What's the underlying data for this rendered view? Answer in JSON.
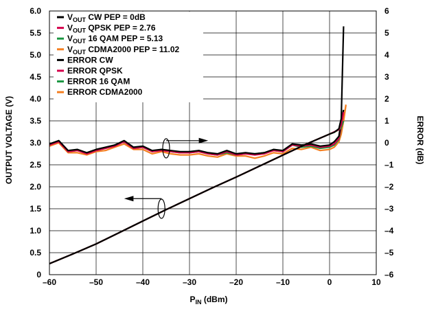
{
  "chart_data": {
    "type": "line",
    "xlabel": {
      "main": "P",
      "sub": "IN",
      "rest": " (dBm)"
    },
    "ylabel_left": "OUTPUT VOLTAGE (V)",
    "ylabel_right": "ERROR (dB)",
    "xlim": [
      -60,
      10
    ],
    "ylim_left": [
      0,
      6.0
    ],
    "ylim_right": [
      -6,
      6
    ],
    "x_ticks": [
      -60,
      -50,
      -40,
      -30,
      -20,
      -10,
      0,
      10
    ],
    "x_tick_labels": [
      "–60",
      "–50",
      "–40",
      "–30",
      "–20",
      "–10",
      "0",
      "10"
    ],
    "y_left_ticks": [
      0,
      0.5,
      1.0,
      1.5,
      2.0,
      2.5,
      3.0,
      3.5,
      4.0,
      4.5,
      5.0,
      5.5,
      6.0
    ],
    "y_left_tick_labels": [
      "0",
      "0.5",
      "1.0",
      "1.5",
      "2.0",
      "2.5",
      "3.0",
      "3.5",
      "4.0",
      "4.5",
      "5.0",
      "5.5",
      "6.0"
    ],
    "y_right_ticks": [
      -6,
      -5,
      -4,
      -3,
      -2,
      -1,
      0,
      1,
      2,
      3,
      4,
      5,
      6
    ],
    "y_right_tick_labels": [
      "–6",
      "–5",
      "–4",
      "–3",
      "–2",
      "–1",
      "0",
      "1",
      "2",
      "3",
      "4",
      "5",
      "6"
    ],
    "grid": true,
    "legend_position": "top-left",
    "legend": [
      {
        "main": "V",
        "sub": "OUT",
        "rest": " CW PEP = 0dB",
        "color": "#000000"
      },
      {
        "main": "V",
        "sub": "OUT",
        "rest": "  QPSK PEP = 2.76",
        "color": "#d4004b"
      },
      {
        "main": "V",
        "sub": "OUT",
        "rest": " 16 QAM PEP = 5.13",
        "color": "#1a9641"
      },
      {
        "main": "V",
        "sub": "OUT",
        "rest": " CDMA2000 PEP = 11.02",
        "color": "#f57f20"
      },
      {
        "main": "ERROR CW",
        "sub": "",
        "rest": "",
        "color": "#000000"
      },
      {
        "main": "ERROR QPSK",
        "sub": "",
        "rest": "",
        "color": "#d4004b"
      },
      {
        "main": "ERROR 16 QAM",
        "sub": "",
        "rest": "",
        "color": "#1a9641"
      },
      {
        "main": "ERROR CDMA2000",
        "sub": "",
        "rest": "",
        "color": "#f57f20"
      }
    ],
    "series": [
      {
        "axis": "left",
        "color": "#000000",
        "x": [
          -60,
          -55,
          -50,
          -45,
          -40,
          -35,
          -30,
          -25,
          -20,
          -15,
          -10,
          -5,
          0,
          1,
          2,
          2.5,
          3
        ],
        "y": [
          0.25,
          0.47,
          0.7,
          0.96,
          1.22,
          1.48,
          1.73,
          1.98,
          2.22,
          2.47,
          2.72,
          2.97,
          3.2,
          3.24,
          3.32,
          3.55,
          5.65
        ]
      },
      {
        "axis": "left",
        "color": "#d4004b",
        "x": [
          -60,
          -55,
          -50,
          -45,
          -40,
          -35,
          -30,
          -25,
          -20,
          -15,
          -10,
          -5,
          0,
          1,
          2,
          2.5,
          3
        ],
        "y": [
          0.25,
          0.47,
          0.7,
          0.96,
          1.22,
          1.48,
          1.73,
          1.98,
          2.22,
          2.47,
          2.72,
          2.97,
          3.2,
          3.25,
          3.3,
          3.4,
          3.7
        ]
      },
      {
        "axis": "left",
        "color": "#1a9641",
        "x": [
          -60,
          -55,
          -50,
          -45,
          -40,
          -35,
          -30,
          -25,
          -20,
          -15,
          -10,
          -5,
          0,
          1,
          2,
          2.5,
          3
        ],
        "y": [
          0.25,
          0.47,
          0.7,
          0.96,
          1.22,
          1.48,
          1.73,
          1.98,
          2.22,
          2.47,
          2.72,
          2.97,
          3.2,
          3.24,
          3.3,
          3.35,
          3.5
        ]
      },
      {
        "axis": "left",
        "color": "#f57f20",
        "x": [
          -60,
          -55,
          -50,
          -45,
          -40,
          -35,
          -30,
          -25,
          -20,
          -15,
          -10,
          -5,
          0,
          1,
          2,
          2.5,
          3,
          3.5
        ],
        "y": [
          0.25,
          0.47,
          0.7,
          0.96,
          1.22,
          1.48,
          1.73,
          1.98,
          2.22,
          2.47,
          2.72,
          2.97,
          3.2,
          3.24,
          3.3,
          3.35,
          3.5,
          3.87
        ]
      },
      {
        "axis": "right",
        "color": "#000000",
        "x": [
          -60,
          -58,
          -56,
          -54,
          -52,
          -50,
          -48,
          -46,
          -44,
          -42,
          -40,
          -38,
          -36,
          -34,
          -32,
          -30,
          -28,
          -26,
          -24,
          -22,
          -20,
          -18,
          -16,
          -14,
          -12,
          -10,
          -8,
          -6,
          -4,
          -2,
          0,
          1,
          2,
          2.5,
          3
        ],
        "y": [
          -0.05,
          0.1,
          -0.35,
          -0.3,
          -0.45,
          -0.3,
          -0.2,
          -0.1,
          0.1,
          -0.2,
          -0.15,
          -0.35,
          -0.3,
          -0.35,
          -0.4,
          -0.4,
          -0.35,
          -0.45,
          -0.5,
          -0.35,
          -0.5,
          -0.45,
          -0.5,
          -0.45,
          -0.3,
          -0.35,
          -0.05,
          -0.1,
          -0.05,
          -0.15,
          -0.1,
          0.05,
          0.3,
          1.0,
          1.5
        ]
      },
      {
        "axis": "right",
        "color": "#d4004b",
        "x": [
          -60,
          -58,
          -56,
          -54,
          -52,
          -50,
          -48,
          -46,
          -44,
          -42,
          -40,
          -38,
          -36,
          -34,
          -32,
          -30,
          -28,
          -26,
          -24,
          -22,
          -20,
          -18,
          -16,
          -14,
          -12,
          -10,
          -8,
          -6,
          -4,
          -2,
          0,
          1,
          2,
          2.5,
          3
        ],
        "y": [
          -0.1,
          0.05,
          -0.4,
          -0.35,
          -0.5,
          -0.35,
          -0.25,
          -0.15,
          0.05,
          -0.25,
          -0.2,
          -0.4,
          -0.35,
          -0.4,
          -0.45,
          -0.45,
          -0.4,
          -0.5,
          -0.55,
          -0.4,
          -0.55,
          -0.5,
          -0.55,
          -0.5,
          -0.35,
          -0.4,
          -0.1,
          -0.15,
          -0.1,
          -0.2,
          -0.15,
          -0.05,
          0.2,
          0.8,
          1.4
        ]
      },
      {
        "axis": "right",
        "color": "#1a9641",
        "x": [
          -60,
          -58,
          -56,
          -54,
          -52,
          -50,
          -48,
          -46,
          -44,
          -42,
          -40,
          -38,
          -36,
          -34,
          -32,
          -30,
          -28,
          -26,
          -24,
          -22,
          -20,
          -18,
          -16,
          -14,
          -12,
          -10,
          -8,
          -6,
          -4,
          -2,
          0,
          1,
          2,
          2.5,
          3
        ],
        "y": [
          -0.1,
          0.1,
          -0.4,
          -0.35,
          -0.45,
          -0.35,
          -0.25,
          -0.1,
          0.05,
          -0.25,
          -0.2,
          -0.4,
          -0.3,
          -0.4,
          -0.45,
          -0.45,
          -0.4,
          -0.5,
          -0.55,
          -0.45,
          -0.55,
          -0.5,
          -0.5,
          -0.45,
          -0.35,
          -0.4,
          -0.1,
          -0.2,
          -0.15,
          -0.25,
          -0.2,
          -0.1,
          0.15,
          0.7,
          1.3
        ]
      },
      {
        "axis": "right",
        "color": "#f57f20",
        "x": [
          -60,
          -58,
          -56,
          -54,
          -52,
          -50,
          -48,
          -46,
          -44,
          -42,
          -40,
          -38,
          -36,
          -34,
          -32,
          -30,
          -28,
          -26,
          -24,
          -22,
          -20,
          -18,
          -16,
          -14,
          -12,
          -10,
          -8,
          -6,
          -4,
          -2,
          0,
          1,
          2,
          2.5,
          3,
          3.5
        ],
        "y": [
          -0.15,
          0.0,
          -0.45,
          -0.45,
          -0.55,
          -0.4,
          -0.35,
          -0.2,
          -0.05,
          -0.3,
          -0.3,
          -0.5,
          -0.4,
          -0.5,
          -0.55,
          -0.55,
          -0.5,
          -0.6,
          -0.65,
          -0.5,
          -0.6,
          -0.6,
          -0.7,
          -0.6,
          -0.45,
          -0.5,
          -0.25,
          -0.3,
          -0.2,
          -0.35,
          -0.3,
          -0.2,
          0.05,
          0.4,
          1.0,
          1.7
        ]
      }
    ]
  }
}
